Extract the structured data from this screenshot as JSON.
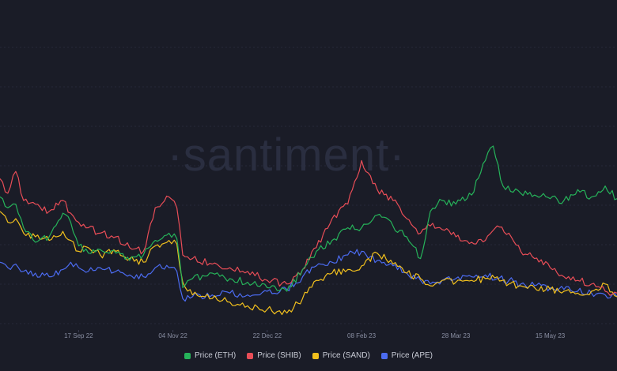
{
  "watermark": "·santiment·",
  "colors": {
    "background": "#1a1c27",
    "grid": "#262938",
    "ETH": "#26b35a",
    "SHIB": "#e84d57",
    "SAND": "#f2c01d",
    "APE": "#4b6bf0"
  },
  "chart_data": {
    "type": "line",
    "x_axis": {
      "ticks": [
        "17 Sep 22",
        "04 Nov 22",
        "22 Dec 22",
        "08 Feb 23",
        "28 Mar 23",
        "15 May 23"
      ],
      "range": [
        "2022-08-08",
        "2023-06-18"
      ]
    },
    "y_axis": {
      "labels_shown": false,
      "note": "each series independently normalized"
    },
    "grid": true,
    "legend_position": "bottom-center",
    "series": [
      {
        "name": "Price (ETH)",
        "key": "ETH",
        "points": [
          [
            "2022-08-08",
            0.72
          ],
          [
            "2022-08-12",
            0.66
          ],
          [
            "2022-08-16",
            0.68
          ],
          [
            "2022-08-20",
            0.55
          ],
          [
            "2022-08-26",
            0.47
          ],
          [
            "2022-09-02",
            0.5
          ],
          [
            "2022-09-09",
            0.63
          ],
          [
            "2022-09-13",
            0.58
          ],
          [
            "2022-09-17",
            0.45
          ],
          [
            "2022-09-22",
            0.41
          ],
          [
            "2022-09-28",
            0.43
          ],
          [
            "2022-10-06",
            0.41
          ],
          [
            "2022-10-13",
            0.37
          ],
          [
            "2022-10-20",
            0.4
          ],
          [
            "2022-10-26",
            0.48
          ],
          [
            "2022-11-02",
            0.52
          ],
          [
            "2022-11-06",
            0.49
          ],
          [
            "2022-11-09",
            0.22
          ],
          [
            "2022-11-14",
            0.27
          ],
          [
            "2022-11-24",
            0.3
          ],
          [
            "2022-12-03",
            0.27
          ],
          [
            "2022-12-12",
            0.25
          ],
          [
            "2022-12-22",
            0.22
          ],
          [
            "2023-01-01",
            0.2
          ],
          [
            "2023-01-09",
            0.32
          ],
          [
            "2023-01-16",
            0.42
          ],
          [
            "2023-01-24",
            0.48
          ],
          [
            "2023-02-01",
            0.55
          ],
          [
            "2023-02-08",
            0.55
          ],
          [
            "2023-02-16",
            0.62
          ],
          [
            "2023-02-24",
            0.56
          ],
          [
            "2023-03-03",
            0.5
          ],
          [
            "2023-03-10",
            0.38
          ],
          [
            "2023-03-15",
            0.64
          ],
          [
            "2023-03-21",
            0.7
          ],
          [
            "2023-03-28",
            0.68
          ],
          [
            "2023-04-05",
            0.73
          ],
          [
            "2023-04-12",
            0.92
          ],
          [
            "2023-04-16",
            1.0
          ],
          [
            "2023-04-21",
            0.78
          ],
          [
            "2023-04-30",
            0.74
          ],
          [
            "2023-05-07",
            0.73
          ],
          [
            "2023-05-15",
            0.71
          ],
          [
            "2023-05-22",
            0.7
          ],
          [
            "2023-05-29",
            0.76
          ],
          [
            "2023-06-05",
            0.72
          ],
          [
            "2023-06-12",
            0.78
          ],
          [
            "2023-06-18",
            0.71
          ]
        ]
      },
      {
        "name": "Price (SHIB)",
        "key": "SHIB",
        "points": [
          [
            "2022-08-08",
            0.82
          ],
          [
            "2022-08-12",
            0.74
          ],
          [
            "2022-08-16",
            0.86
          ],
          [
            "2022-08-20",
            0.7
          ],
          [
            "2022-08-26",
            0.68
          ],
          [
            "2022-09-02",
            0.64
          ],
          [
            "2022-09-09",
            0.7
          ],
          [
            "2022-09-13",
            0.63
          ],
          [
            "2022-09-17",
            0.58
          ],
          [
            "2022-09-22",
            0.55
          ],
          [
            "2022-09-28",
            0.52
          ],
          [
            "2022-10-06",
            0.5
          ],
          [
            "2022-10-13",
            0.44
          ],
          [
            "2022-10-20",
            0.42
          ],
          [
            "2022-10-26",
            0.66
          ],
          [
            "2022-11-02",
            0.72
          ],
          [
            "2022-11-06",
            0.66
          ],
          [
            "2022-11-09",
            0.4
          ],
          [
            "2022-11-14",
            0.38
          ],
          [
            "2022-11-24",
            0.35
          ],
          [
            "2022-12-03",
            0.33
          ],
          [
            "2022-12-12",
            0.31
          ],
          [
            "2022-12-22",
            0.26
          ],
          [
            "2023-01-01",
            0.24
          ],
          [
            "2023-01-09",
            0.32
          ],
          [
            "2023-01-16",
            0.44
          ],
          [
            "2023-01-24",
            0.6
          ],
          [
            "2023-02-01",
            0.68
          ],
          [
            "2023-02-08",
            0.92
          ],
          [
            "2023-02-16",
            0.76
          ],
          [
            "2023-02-24",
            0.7
          ],
          [
            "2023-03-03",
            0.6
          ],
          [
            "2023-03-10",
            0.52
          ],
          [
            "2023-03-15",
            0.56
          ],
          [
            "2023-03-21",
            0.54
          ],
          [
            "2023-03-28",
            0.5
          ],
          [
            "2023-04-05",
            0.47
          ],
          [
            "2023-04-12",
            0.48
          ],
          [
            "2023-04-18",
            0.56
          ],
          [
            "2023-04-24",
            0.52
          ],
          [
            "2023-04-30",
            0.42
          ],
          [
            "2023-05-07",
            0.38
          ],
          [
            "2023-05-15",
            0.33
          ],
          [
            "2023-05-22",
            0.28
          ],
          [
            "2023-05-29",
            0.26
          ],
          [
            "2023-06-05",
            0.24
          ],
          [
            "2023-06-12",
            0.2
          ],
          [
            "2023-06-18",
            0.19
          ]
        ]
      },
      {
        "name": "Price (SAND)",
        "key": "SAND",
        "points": [
          [
            "2022-08-08",
            0.64
          ],
          [
            "2022-08-12",
            0.58
          ],
          [
            "2022-08-16",
            0.6
          ],
          [
            "2022-08-20",
            0.52
          ],
          [
            "2022-08-26",
            0.5
          ],
          [
            "2022-09-02",
            0.48
          ],
          [
            "2022-09-09",
            0.53
          ],
          [
            "2022-09-13",
            0.48
          ],
          [
            "2022-09-17",
            0.42
          ],
          [
            "2022-09-22",
            0.44
          ],
          [
            "2022-09-28",
            0.4
          ],
          [
            "2022-10-06",
            0.42
          ],
          [
            "2022-10-13",
            0.38
          ],
          [
            "2022-10-20",
            0.36
          ],
          [
            "2022-10-26",
            0.45
          ],
          [
            "2022-11-02",
            0.48
          ],
          [
            "2022-11-06",
            0.46
          ],
          [
            "2022-11-09",
            0.25
          ],
          [
            "2022-11-14",
            0.18
          ],
          [
            "2022-11-24",
            0.16
          ],
          [
            "2022-12-03",
            0.14
          ],
          [
            "2022-12-12",
            0.12
          ],
          [
            "2022-12-22",
            0.1
          ],
          [
            "2023-01-01",
            0.08
          ],
          [
            "2023-01-09",
            0.16
          ],
          [
            "2023-01-16",
            0.26
          ],
          [
            "2023-01-24",
            0.3
          ],
          [
            "2023-02-01",
            0.32
          ],
          [
            "2023-02-08",
            0.34
          ],
          [
            "2023-02-16",
            0.41
          ],
          [
            "2023-02-24",
            0.35
          ],
          [
            "2023-03-03",
            0.3
          ],
          [
            "2023-03-10",
            0.27
          ],
          [
            "2023-03-15",
            0.23
          ],
          [
            "2023-03-21",
            0.26
          ],
          [
            "2023-03-28",
            0.25
          ],
          [
            "2023-04-05",
            0.26
          ],
          [
            "2023-04-12",
            0.27
          ],
          [
            "2023-04-18",
            0.28
          ],
          [
            "2023-04-24",
            0.24
          ],
          [
            "2023-04-30",
            0.23
          ],
          [
            "2023-05-07",
            0.22
          ],
          [
            "2023-05-15",
            0.21
          ],
          [
            "2023-05-22",
            0.2
          ],
          [
            "2023-05-29",
            0.19
          ],
          [
            "2023-06-05",
            0.2
          ],
          [
            "2023-06-12",
            0.24
          ],
          [
            "2023-06-18",
            0.17
          ]
        ]
      },
      {
        "name": "Price (APE)",
        "key": "APE",
        "points": [
          [
            "2022-08-08",
            0.36
          ],
          [
            "2022-08-12",
            0.33
          ],
          [
            "2022-08-16",
            0.35
          ],
          [
            "2022-08-20",
            0.31
          ],
          [
            "2022-08-26",
            0.3
          ],
          [
            "2022-09-02",
            0.28
          ],
          [
            "2022-09-09",
            0.32
          ],
          [
            "2022-09-13",
            0.36
          ],
          [
            "2022-09-17",
            0.33
          ],
          [
            "2022-09-22",
            0.31
          ],
          [
            "2022-09-28",
            0.33
          ],
          [
            "2022-10-06",
            0.31
          ],
          [
            "2022-10-13",
            0.29
          ],
          [
            "2022-10-20",
            0.28
          ],
          [
            "2022-10-26",
            0.33
          ],
          [
            "2022-11-02",
            0.33
          ],
          [
            "2022-11-06",
            0.31
          ],
          [
            "2022-11-09",
            0.16
          ],
          [
            "2022-11-14",
            0.17
          ],
          [
            "2022-11-24",
            0.18
          ],
          [
            "2022-12-03",
            0.19
          ],
          [
            "2022-12-12",
            0.18
          ],
          [
            "2022-12-22",
            0.2
          ],
          [
            "2023-01-01",
            0.21
          ],
          [
            "2023-01-09",
            0.28
          ],
          [
            "2023-01-16",
            0.34
          ],
          [
            "2023-01-24",
            0.36
          ],
          [
            "2023-02-01",
            0.4
          ],
          [
            "2023-02-08",
            0.42
          ],
          [
            "2023-02-16",
            0.37
          ],
          [
            "2023-02-24",
            0.34
          ],
          [
            "2023-03-03",
            0.3
          ],
          [
            "2023-03-10",
            0.26
          ],
          [
            "2023-03-15",
            0.24
          ],
          [
            "2023-03-21",
            0.26
          ],
          [
            "2023-03-28",
            0.27
          ],
          [
            "2023-04-05",
            0.28
          ],
          [
            "2023-04-12",
            0.29
          ],
          [
            "2023-04-18",
            0.27
          ],
          [
            "2023-04-24",
            0.26
          ],
          [
            "2023-04-30",
            0.24
          ],
          [
            "2023-05-07",
            0.23
          ],
          [
            "2023-05-15",
            0.22
          ],
          [
            "2023-05-22",
            0.21
          ],
          [
            "2023-05-29",
            0.2
          ],
          [
            "2023-06-05",
            0.19
          ],
          [
            "2023-06-12",
            0.18
          ],
          [
            "2023-06-18",
            0.17
          ]
        ]
      }
    ]
  }
}
